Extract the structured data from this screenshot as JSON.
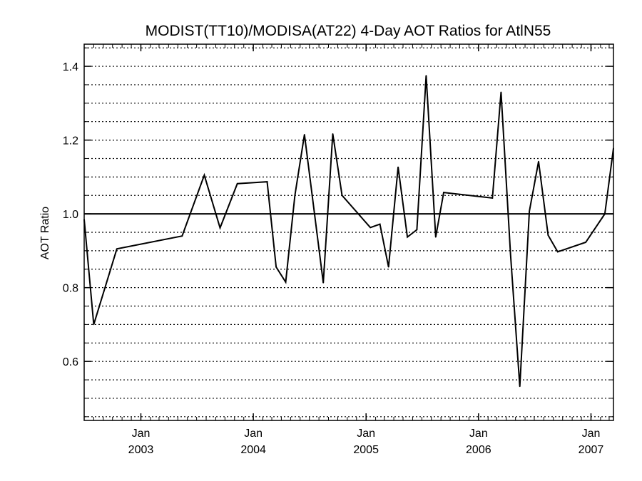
{
  "chart_data": {
    "type": "line",
    "title": "MODIST(TT10)/MODISA(AT22) 4-Day AOT Ratios for AtlN55",
    "xlabel": "",
    "ylabel": "AOT Ratio",
    "xlim": [
      "2002-07-01",
      "2007-03-15"
    ],
    "ylim": [
      0.44,
      1.46
    ],
    "y_ticks": [
      "0.6",
      "0.8",
      "1.0",
      "1.2",
      "1.4"
    ],
    "x_ticks": [
      {
        "date": "2003-01-01",
        "month": "Jan",
        "year": "2003"
      },
      {
        "date": "2004-01-01",
        "month": "Jan",
        "year": "2004"
      },
      {
        "date": "2005-01-01",
        "month": "Jan",
        "year": "2005"
      },
      {
        "date": "2006-01-01",
        "month": "Jan",
        "year": "2006"
      },
      {
        "date": "2007-01-01",
        "month": "Jan",
        "year": "2007"
      }
    ],
    "reference_line": 1.0,
    "grid": "horizontal-dotted",
    "series": [
      {
        "color": "#000000",
        "x": [
          "2002-07-01",
          "2002-08-01",
          "2002-10-15",
          "2003-05-15",
          "2003-07-26",
          "2003-09-15",
          "2003-11-10",
          "2004-02-15",
          "2004-03-15",
          "2004-04-15",
          "2004-05-15",
          "2004-06-15",
          "2004-08-15",
          "2004-09-15",
          "2004-10-15",
          "2005-01-15",
          "2005-02-15",
          "2005-03-15",
          "2005-04-15",
          "2005-05-15",
          "2005-06-15",
          "2005-07-15",
          "2005-08-15",
          "2005-09-10",
          "2006-02-15",
          "2006-03-15",
          "2006-04-15",
          "2006-05-15",
          "2006-06-15",
          "2006-07-15",
          "2006-08-15",
          "2006-09-15",
          "2006-12-15",
          "2007-02-15",
          "2007-03-15"
        ],
        "y": [
          0.985,
          0.7,
          0.905,
          0.94,
          1.105,
          0.962,
          1.082,
          1.087,
          0.856,
          0.815,
          1.05,
          1.215,
          0.813,
          1.217,
          1.05,
          0.963,
          0.972,
          0.856,
          1.127,
          0.937,
          0.957,
          1.375,
          0.937,
          1.058,
          1.043,
          1.33,
          0.89,
          0.532,
          1.007,
          1.142,
          0.942,
          0.897,
          0.923,
          1.0,
          1.178
        ]
      }
    ]
  }
}
